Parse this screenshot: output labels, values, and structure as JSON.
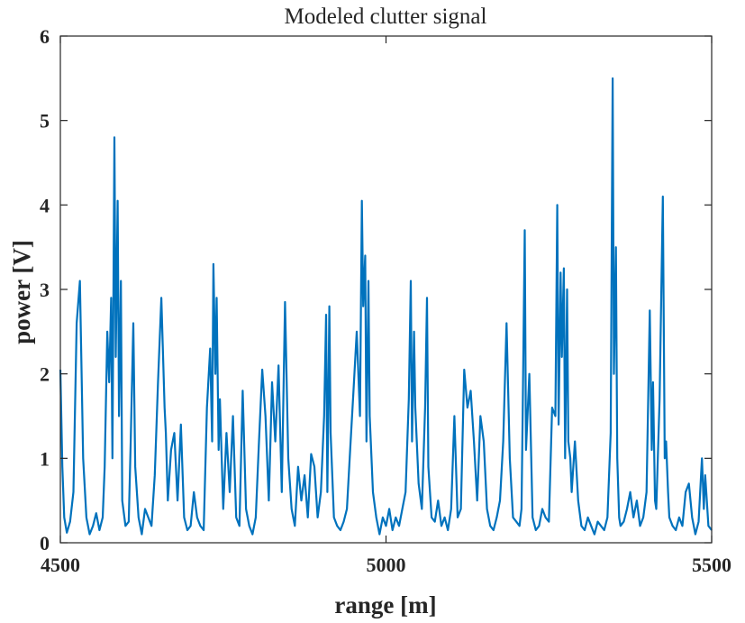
{
  "chart_data": {
    "type": "line",
    "title": "Modeled clutter signal",
    "xlabel": "range [m]",
    "ylabel": "power [V]",
    "xlim": [
      4500,
      5500
    ],
    "ylim": [
      0,
      6
    ],
    "xticks": [
      4500,
      5000,
      5500
    ],
    "yticks": [
      0,
      1,
      2,
      3,
      4,
      5,
      6
    ],
    "grid": false,
    "legend": "none",
    "series": [
      {
        "color": "#0072BD",
        "x": [
          4500,
          4503,
          4506,
          4510,
          4515,
          4520,
          4525,
          4530,
          4535,
          4540,
          4545,
          4550,
          4555,
          4560,
          4565,
          4568,
          4572,
          4575,
          4578,
          4580,
          4583,
          4585,
          4588,
          4590,
          4593,
          4595,
          4600,
          4605,
          4608,
          4612,
          4615,
          4620,
          4625,
          4630,
          4635,
          4640,
          4645,
          4650,
          4655,
          4660,
          4662,
          4665,
          4670,
          4675,
          4680,
          4685,
          4690,
          4695,
          4700,
          4705,
          4710,
          4715,
          4720,
          4725,
          4730,
          4733,
          4735,
          4738,
          4740,
          4743,
          4745,
          4750,
          4755,
          4760,
          4765,
          4770,
          4775,
          4780,
          4785,
          4790,
          4795,
          4800,
          4805,
          4810,
          4815,
          4820,
          4825,
          4830,
          4835,
          4840,
          4845,
          4850,
          4855,
          4860,
          4865,
          4870,
          4875,
          4880,
          4885,
          4890,
          4895,
          4900,
          4905,
          4908,
          4910,
          4913,
          4915,
          4920,
          4925,
          4930,
          4935,
          4940,
          4945,
          4950,
          4955,
          4960,
          4963,
          4965,
          4968,
          4970,
          4973,
          4975,
          4980,
          4985,
          4990,
          4995,
          5000,
          5005,
          5010,
          5015,
          5020,
          5025,
          5030,
          5035,
          5038,
          5040,
          5043,
          5045,
          5050,
          5055,
          5060,
          5063,
          5065,
          5070,
          5075,
          5080,
          5085,
          5090,
          5095,
          5100,
          5105,
          5110,
          5115,
          5120,
          5125,
          5130,
          5135,
          5140,
          5145,
          5150,
          5155,
          5160,
          5165,
          5170,
          5175,
          5180,
          5185,
          5190,
          5195,
          5200,
          5205,
          5208,
          5210,
          5213,
          5215,
          5220,
          5225,
          5230,
          5235,
          5240,
          5245,
          5250,
          5255,
          5260,
          5263,
          5265,
          5268,
          5270,
          5273,
          5275,
          5278,
          5280,
          5283,
          5285,
          5290,
          5295,
          5300,
          5305,
          5310,
          5315,
          5320,
          5325,
          5330,
          5335,
          5340,
          5345,
          5348,
          5350,
          5353,
          5355,
          5358,
          5360,
          5365,
          5370,
          5375,
          5380,
          5385,
          5390,
          5395,
          5400,
          5405,
          5408,
          5410,
          5413,
          5415,
          5420,
          5425,
          5428,
          5430,
          5433,
          5435,
          5440,
          5445,
          5450,
          5455,
          5460,
          5465,
          5470,
          5475,
          5480,
          5485,
          5488,
          5490,
          5495,
          5500
        ],
        "y": [
          2.05,
          0.9,
          0.3,
          0.12,
          0.25,
          0.6,
          2.6,
          3.1,
          1.0,
          0.3,
          0.1,
          0.2,
          0.35,
          0.15,
          0.3,
          0.9,
          2.5,
          1.9,
          2.9,
          1.0,
          4.8,
          2.2,
          4.05,
          1.5,
          3.1,
          0.5,
          0.2,
          0.25,
          1.2,
          2.6,
          0.9,
          0.3,
          0.1,
          0.4,
          0.3,
          0.2,
          0.8,
          1.9,
          2.9,
          1.6,
          1.3,
          0.5,
          1.1,
          1.3,
          0.5,
          1.4,
          0.3,
          0.15,
          0.2,
          0.6,
          0.3,
          0.2,
          0.15,
          1.6,
          2.3,
          1.2,
          3.3,
          2.0,
          2.9,
          1.1,
          1.7,
          0.4,
          1.3,
          0.6,
          1.5,
          0.3,
          0.2,
          1.8,
          0.4,
          0.2,
          0.1,
          0.3,
          1.2,
          2.05,
          1.5,
          0.5,
          1.9,
          1.2,
          2.1,
          0.6,
          2.85,
          1.0,
          0.4,
          0.2,
          0.9,
          0.5,
          0.8,
          0.3,
          1.05,
          0.9,
          0.3,
          0.6,
          1.5,
          2.7,
          0.6,
          2.8,
          1.3,
          0.3,
          0.2,
          0.15,
          0.25,
          0.4,
          1.1,
          1.8,
          2.5,
          1.5,
          4.05,
          2.8,
          3.4,
          1.2,
          3.1,
          1.5,
          0.6,
          0.3,
          0.1,
          0.3,
          0.2,
          0.4,
          0.15,
          0.3,
          0.2,
          0.4,
          0.6,
          1.7,
          3.1,
          1.2,
          2.5,
          1.6,
          0.7,
          0.4,
          1.6,
          2.9,
          0.9,
          0.3,
          0.25,
          0.5,
          0.2,
          0.3,
          0.15,
          0.4,
          1.5,
          0.3,
          0.4,
          2.05,
          1.6,
          1.8,
          1.2,
          0.5,
          1.5,
          1.2,
          0.4,
          0.2,
          0.15,
          0.3,
          0.5,
          1.2,
          2.6,
          1.0,
          0.3,
          0.25,
          0.2,
          0.4,
          1.6,
          3.7,
          1.1,
          2.0,
          0.3,
          0.15,
          0.2,
          0.4,
          0.3,
          0.25,
          1.6,
          1.5,
          4.0,
          1.4,
          3.2,
          2.2,
          3.25,
          1.0,
          3.0,
          1.2,
          1.0,
          0.6,
          1.2,
          0.5,
          0.2,
          0.15,
          0.3,
          0.2,
          0.1,
          0.25,
          0.2,
          0.15,
          0.3,
          1.3,
          5.5,
          2.0,
          3.5,
          1.0,
          0.3,
          0.2,
          0.25,
          0.4,
          0.6,
          0.3,
          0.5,
          0.2,
          0.3,
          0.6,
          2.75,
          1.1,
          1.9,
          0.5,
          0.4,
          1.7,
          4.1,
          1.0,
          1.2,
          0.6,
          0.3,
          0.2,
          0.15,
          0.3,
          0.2,
          0.6,
          0.7,
          0.3,
          0.1,
          0.25,
          1.0,
          0.4,
          0.8,
          0.2,
          0.15
        ]
      }
    ]
  }
}
